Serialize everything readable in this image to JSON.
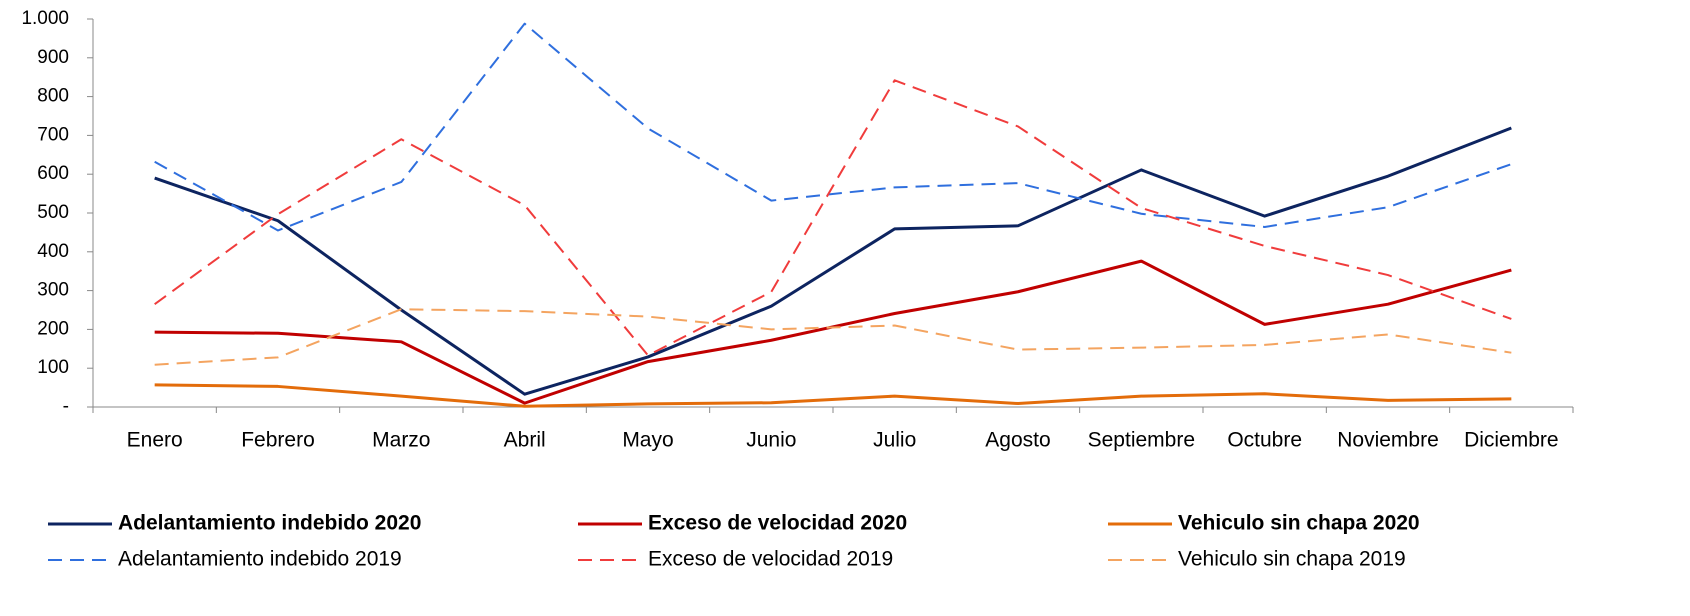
{
  "chart_data": {
    "type": "line",
    "categories": [
      "Enero",
      "Febrero",
      "Marzo",
      "Abril",
      "Mayo",
      "Junio",
      "Julio",
      "Agosto",
      "Septiembre",
      "Octubre",
      "Noviembre",
      "Diciembre"
    ],
    "series": [
      {
        "name": "Adelantamiento indebido 2020",
        "color": "#0d2460",
        "line_style": "solid",
        "values": [
          590,
          480,
          250,
          33,
          129,
          260,
          459,
          467,
          611,
          492,
          595,
          719
        ]
      },
      {
        "name": "Exceso de velocidad 2020",
        "color": "#c00000",
        "line_style": "solid",
        "values": [
          193,
          190,
          168,
          10,
          117,
          172,
          241,
          297,
          376,
          213,
          265,
          353
        ]
      },
      {
        "name": "Vehiculo sin chapa 2020",
        "color": "#e36c0a",
        "line_style": "solid",
        "values": [
          57,
          53,
          28,
          2,
          8,
          11,
          28,
          9,
          28,
          34,
          17,
          21
        ]
      },
      {
        "name": "Adelantamiento indebido 2019",
        "color": "#2f6fde",
        "line_style": "dashed",
        "values": [
          632,
          455,
          580,
          988,
          718,
          532,
          566,
          577,
          498,
          464,
          515,
          626
        ]
      },
      {
        "name": "Exceso de velocidad 2019",
        "color": "#f03c3c",
        "line_style": "dashed",
        "values": [
          265,
          497,
          690,
          520,
          133,
          297,
          842,
          723,
          513,
          415,
          340,
          227
        ]
      },
      {
        "name": "Vehiculo sin chapa 2019",
        "color": "#f4a460",
        "line_style": "dashed",
        "values": [
          109,
          128,
          252,
          247,
          233,
          200,
          210,
          148,
          153,
          160,
          187,
          140
        ]
      }
    ],
    "ylim": [
      0,
      1000
    ],
    "yticks": [
      {
        "value": 0,
        "label": "-"
      },
      100,
      200,
      300,
      400,
      500,
      600,
      700,
      800,
      900,
      {
        "value": 1000,
        "label": "1.000"
      }
    ],
    "grid": false,
    "legend": "bottom"
  }
}
